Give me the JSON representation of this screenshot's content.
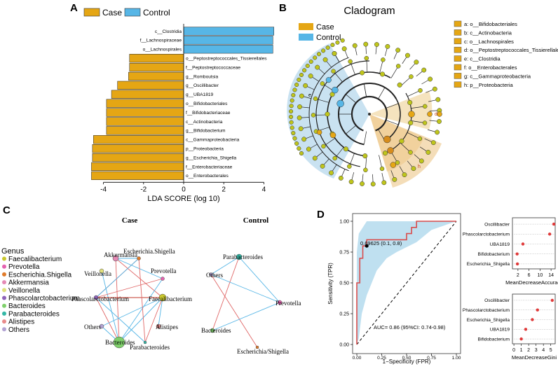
{
  "panels": {
    "a": "A",
    "b": "B",
    "c": "C",
    "d": "D"
  },
  "colors": {
    "case": "#E5A614",
    "control": "#57B6E6",
    "leaf": "#BFC51C",
    "roc": "#D94C4C",
    "roc_band": "#BFE0F0",
    "dot": "#E03A3A"
  },
  "lda": {
    "legend": {
      "case": "Case",
      "control": "Control"
    },
    "xlabel": "LDA SCORE (log 10)",
    "ticks": [
      "-4",
      "-2",
      "0",
      "2",
      "4"
    ]
  },
  "cladogram": {
    "title": "Cladogram",
    "legend": {
      "case": "Case",
      "control": "Control"
    },
    "taxa": [
      "a: o__Bifidobacteriales",
      "b: c__Actinobacteria",
      "c: o__Lachnospirales",
      "d: o__Peptostreptococcales_Tissierellales",
      "e: c__Clostridia",
      "f: o__Enterobacterales",
      "g: c__Gammaproteobacteria",
      "h: p__Proteobacteria"
    ],
    "marks": {
      "e": "e",
      "d": "d",
      "h": "h"
    }
  },
  "network": {
    "case_title": "Case",
    "control_title": "Control",
    "legend_title": "Genus",
    "genera": [
      {
        "name": "Faecalibacterium",
        "color": "#C9C72E"
      },
      {
        "name": "Prevotella",
        "color": "#E463B0"
      },
      {
        "name": "Escherichia.Shigella",
        "color": "#E07B2A"
      },
      {
        "name": "Akkermansia",
        "color": "#E58AB5"
      },
      {
        "name": "Veillonella",
        "color": "#E0E07C"
      },
      {
        "name": "Phascolarctobacterium",
        "color": "#8E63B8"
      },
      {
        "name": "Bacteroides",
        "color": "#7FD06B"
      },
      {
        "name": "Parabacteroides",
        "color": "#34B7A6"
      },
      {
        "name": "Alistipes",
        "color": "#E88B8B"
      },
      {
        "name": "Others",
        "color": "#B3A3D3"
      }
    ],
    "case_nodes": {
      "akkermansia": "Akkermansia",
      "escherichia": "Escherichia.Shigella",
      "veillonella": "Veillonella",
      "prevotella": "Prevotella",
      "phascolarcto": "Phascolarctobacterium",
      "faecali": "Faecalibacterium",
      "others": "Others",
      "alistipes": "Alistipes",
      "bacteroides": "Bacteroides",
      "parabacteroides": "Parabacteroides"
    },
    "control_nodes": {
      "parabacteroides": "Parabacteroides",
      "others": "Others",
      "prevotella": "Prevotella",
      "bacteroides": "Bacteroides",
      "escherichia": "Escherichia/Shigella"
    }
  },
  "roc": {
    "ylabel": "Sensitivity (TPR)",
    "xlabel": "1−Specificity (FPR)",
    "cutoff_label": "0.69625 (0.1, 0.8)",
    "auc_label": "AUC= 0.86 (95%CI: 0.74-0.98)",
    "ticks": [
      "0.00",
      "0.25",
      "0.50",
      "0.75",
      "1.00"
    ]
  },
  "importance": {
    "accuracy": {
      "xlabel": "MeanDecreaseAccuracy",
      "ticks": [
        "2",
        "6",
        "10",
        "14"
      ]
    },
    "gini": {
      "xlabel": "MeanDecreaseGini",
      "ticks": [
        "0",
        "1",
        "2",
        "3",
        "4",
        "5"
      ]
    }
  },
  "chart_data": [
    {
      "type": "bar",
      "title": "LDA",
      "xlabel": "LDA SCORE (log 10)",
      "xlim": [
        -5.1,
        4.6
      ],
      "categories": [
        "c__Clostridia",
        "f__Lachnospiraceae",
        "o__Lachnospirales",
        "o__Peptostreptococcales_Tissierellales",
        "f__Peptostreptococcaceae",
        "g__Romboutsia",
        "g__Oscillibacter",
        "g__UBA1819",
        "o__Bifidobacteriales",
        "f__Bifidobacteriaceae",
        "c__Actinobacteria",
        "g__Bifidobacterium",
        "c__Gammaproteobacteria",
        "p__Proteobacteria",
        "g__Escherichia_Shigella",
        "f__Enterobacteriaceae",
        "o__Enterobacterales"
      ],
      "values": [
        4.5,
        4.45,
        4.45,
        -2.7,
        -2.7,
        -2.75,
        -3.3,
        -3.6,
        -3.85,
        -3.85,
        -3.85,
        -3.85,
        -4.5,
        -4.55,
        -4.55,
        -4.6,
        -4.6
      ],
      "groups": [
        "Control",
        "Control",
        "Control",
        "Case",
        "Case",
        "Case",
        "Case",
        "Case",
        "Case",
        "Case",
        "Case",
        "Case",
        "Case",
        "Case",
        "Case",
        "Case",
        "Case"
      ]
    },
    {
      "type": "line",
      "title": "ROC",
      "xlabel": "1−Specificity (FPR)",
      "ylabel": "Sensitivity (TPR)",
      "xlim": [
        0,
        1
      ],
      "ylim": [
        0,
        1
      ],
      "x": [
        0,
        0,
        0.03,
        0.03,
        0.06,
        0.06,
        0.1,
        0.1,
        0.5,
        0.5,
        0.55,
        0.55,
        0.6,
        0.6,
        0.7,
        0.7,
        1.0
      ],
      "y": [
        0,
        0.5,
        0.5,
        0.7,
        0.7,
        0.8,
        0.8,
        0.85,
        0.85,
        0.9,
        0.9,
        0.95,
        0.95,
        1.0,
        1.0,
        1.0,
        1.0
      ],
      "auc": 0.86,
      "cutoff": {
        "threshold": 0.69625,
        "fpr": 0.1,
        "tpr": 0.8
      }
    },
    {
      "type": "scatter",
      "title": "MeanDecreaseAccuracy",
      "xlim": [
        0,
        15.5
      ],
      "categories": [
        "Oscillibacter",
        "Phascolarctobacterium",
        "UBA1819",
        "Bifidobacterium",
        "Escherichia_Shigella"
      ],
      "values": [
        15,
        13.5,
        3.8,
        1.7,
        1.8
      ]
    },
    {
      "type": "scatter",
      "title": "MeanDecreaseGini",
      "xlim": [
        -0.2,
        5.6
      ],
      "categories": [
        "Oscillibacter",
        "Phascolarctobacterium",
        "Escherichia_Shigella",
        "UBA1819",
        "Bifidobacterium"
      ],
      "values": [
        5.2,
        3.2,
        2.5,
        1.6,
        1.0
      ]
    }
  ]
}
